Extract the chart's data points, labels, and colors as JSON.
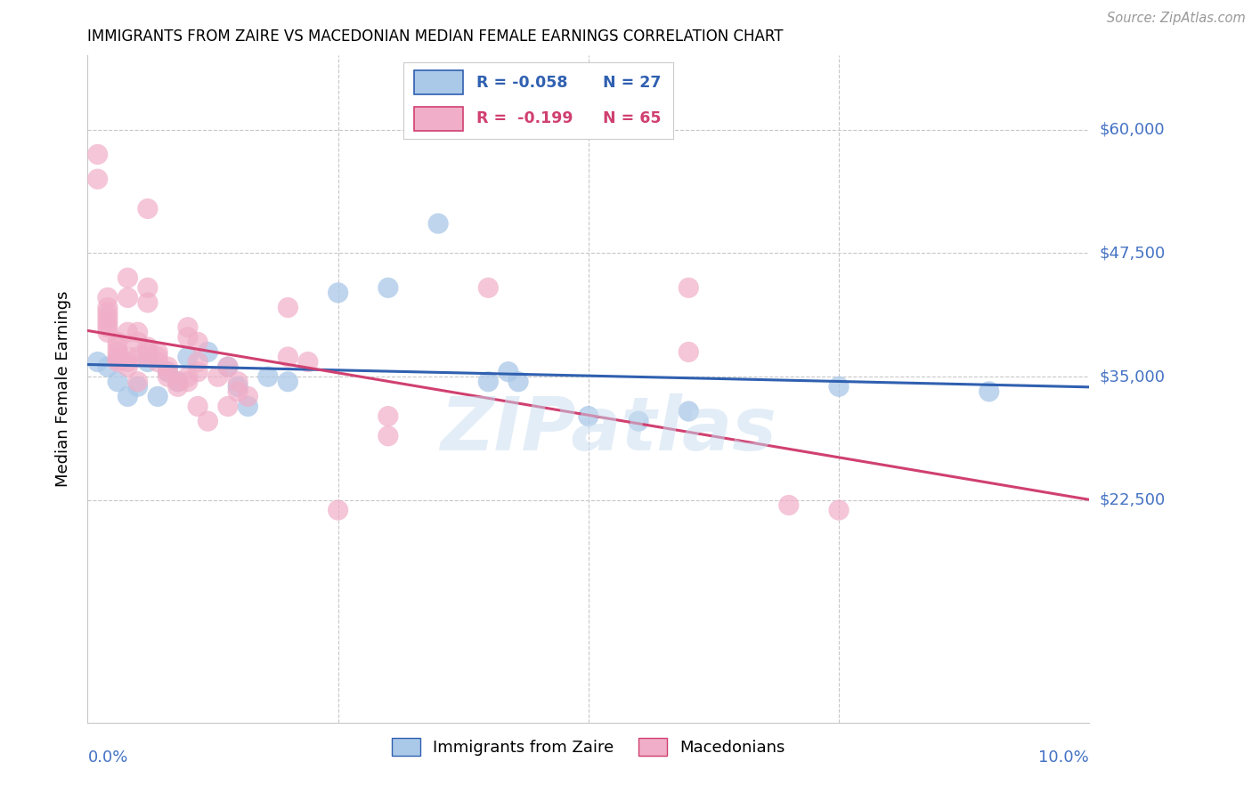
{
  "title": "IMMIGRANTS FROM ZAIRE VS MACEDONIAN MEDIAN FEMALE EARNINGS CORRELATION CHART",
  "source": "Source: ZipAtlas.com",
  "ylabel": "Median Female Earnings",
  "ymin": 0,
  "ymax": 67500,
  "xmin": 0.0,
  "xmax": 0.1,
  "legend_zaire_R": "R = -0.058",
  "legend_zaire_N": "N = 27",
  "legend_mac_R": "R =  -0.199",
  "legend_mac_N": "N = 65",
  "color_zaire": "#aac8e8",
  "color_mac": "#f0aec8",
  "trendline_zaire_color": "#3060b0",
  "trendline_mac_color": "#d04070",
  "watermark": "ZIPatlas",
  "axis_label_color": "#4472c4",
  "ytick_vals": [
    22500,
    35000,
    47500,
    60000
  ],
  "ytick_labels": [
    "$22,500",
    "$35,000",
    "$47,500",
    "$60,000"
  ],
  "zaire_points": [
    [
      0.001,
      36500
    ],
    [
      0.002,
      36000
    ],
    [
      0.003,
      34500
    ],
    [
      0.004,
      33000
    ],
    [
      0.005,
      34000
    ],
    [
      0.006,
      36500
    ],
    [
      0.007,
      33000
    ],
    [
      0.008,
      35500
    ],
    [
      0.009,
      34500
    ],
    [
      0.01,
      37000
    ],
    [
      0.012,
      37500
    ],
    [
      0.014,
      36000
    ],
    [
      0.015,
      34000
    ],
    [
      0.016,
      32000
    ],
    [
      0.018,
      35000
    ],
    [
      0.02,
      34500
    ],
    [
      0.025,
      43500
    ],
    [
      0.03,
      44000
    ],
    [
      0.035,
      50500
    ],
    [
      0.04,
      34500
    ],
    [
      0.042,
      35500
    ],
    [
      0.043,
      34500
    ],
    [
      0.05,
      31000
    ],
    [
      0.055,
      30500
    ],
    [
      0.06,
      31500
    ],
    [
      0.075,
      34000
    ],
    [
      0.09,
      33500
    ]
  ],
  "mac_points": [
    [
      0.001,
      57500
    ],
    [
      0.001,
      55000
    ],
    [
      0.002,
      43000
    ],
    [
      0.002,
      42000
    ],
    [
      0.002,
      41500
    ],
    [
      0.002,
      41000
    ],
    [
      0.002,
      40500
    ],
    [
      0.002,
      40000
    ],
    [
      0.002,
      39500
    ],
    [
      0.003,
      38500
    ],
    [
      0.003,
      38000
    ],
    [
      0.003,
      37500
    ],
    [
      0.003,
      37000
    ],
    [
      0.003,
      36800
    ],
    [
      0.003,
      36500
    ],
    [
      0.004,
      45000
    ],
    [
      0.004,
      43000
    ],
    [
      0.004,
      39500
    ],
    [
      0.004,
      37000
    ],
    [
      0.004,
      36500
    ],
    [
      0.004,
      36000
    ],
    [
      0.005,
      39500
    ],
    [
      0.005,
      38500
    ],
    [
      0.005,
      37000
    ],
    [
      0.005,
      34500
    ],
    [
      0.006,
      52000
    ],
    [
      0.006,
      44000
    ],
    [
      0.006,
      42500
    ],
    [
      0.006,
      38000
    ],
    [
      0.006,
      37500
    ],
    [
      0.006,
      37000
    ],
    [
      0.007,
      37500
    ],
    [
      0.007,
      37000
    ],
    [
      0.007,
      36500
    ],
    [
      0.008,
      36000
    ],
    [
      0.008,
      35500
    ],
    [
      0.008,
      35000
    ],
    [
      0.009,
      34500
    ],
    [
      0.009,
      34000
    ],
    [
      0.01,
      40000
    ],
    [
      0.01,
      39000
    ],
    [
      0.01,
      35000
    ],
    [
      0.01,
      34500
    ],
    [
      0.011,
      38500
    ],
    [
      0.011,
      36500
    ],
    [
      0.011,
      35500
    ],
    [
      0.011,
      32000
    ],
    [
      0.012,
      30500
    ],
    [
      0.013,
      35000
    ],
    [
      0.014,
      36000
    ],
    [
      0.014,
      32000
    ],
    [
      0.015,
      34500
    ],
    [
      0.015,
      33500
    ],
    [
      0.016,
      33000
    ],
    [
      0.02,
      42000
    ],
    [
      0.02,
      37000
    ],
    [
      0.022,
      36500
    ],
    [
      0.025,
      21500
    ],
    [
      0.03,
      31000
    ],
    [
      0.03,
      29000
    ],
    [
      0.04,
      44000
    ],
    [
      0.06,
      44000
    ],
    [
      0.06,
      37500
    ],
    [
      0.07,
      22000
    ],
    [
      0.075,
      21500
    ]
  ]
}
